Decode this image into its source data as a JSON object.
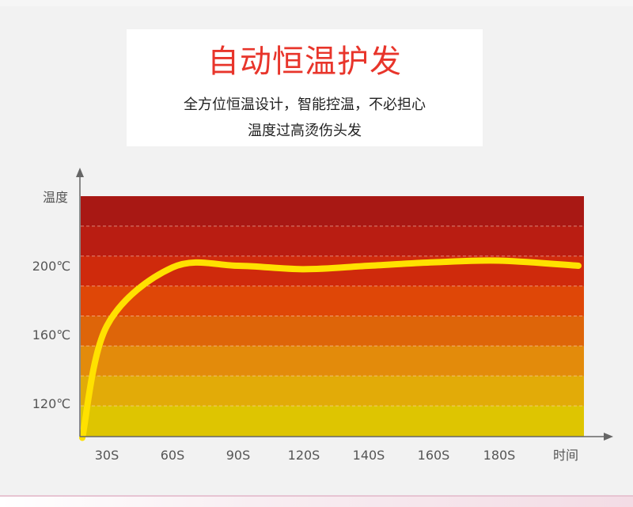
{
  "header": {
    "title": "自动恒温护发",
    "subtitle_line1": "全方位恒温设计，智能控温，不必担心",
    "subtitle_line2": "温度过高烫伤头发"
  },
  "chart_data": {
    "type": "line",
    "title": "自动恒温护发",
    "ylabel": "温度",
    "xlabel": "时间",
    "categories": [
      "30S",
      "60S",
      "90S",
      "120S",
      "140S",
      "160S",
      "180S"
    ],
    "y_tick_labels": [
      "200℃",
      "160℃",
      "120℃"
    ],
    "y_ticks": [
      200,
      160,
      120
    ],
    "ylim": [
      100,
      240
    ],
    "grid": true,
    "series": [
      {
        "color": "#ffe100",
        "points": [
          {
            "x": "start",
            "y": 100
          },
          {
            "x": "30S",
            "y": 165
          },
          {
            "x": "60S",
            "y": 199
          },
          {
            "x": "90S",
            "y": 200
          },
          {
            "x": "120S",
            "y": 198
          },
          {
            "x": "140S",
            "y": 200
          },
          {
            "x": "160S",
            "y": 202
          },
          {
            "x": "180S",
            "y": 203
          },
          {
            "x": "end",
            "y": 200
          }
        ]
      }
    ],
    "band_colors": [
      "#a81814",
      "#b91d12",
      "#cf2a0c",
      "#df4707",
      "#de6509",
      "#e38b0b",
      "#e2ab08",
      "#dec501"
    ],
    "line_color": "#ffe100",
    "axis_color": "#666666"
  }
}
